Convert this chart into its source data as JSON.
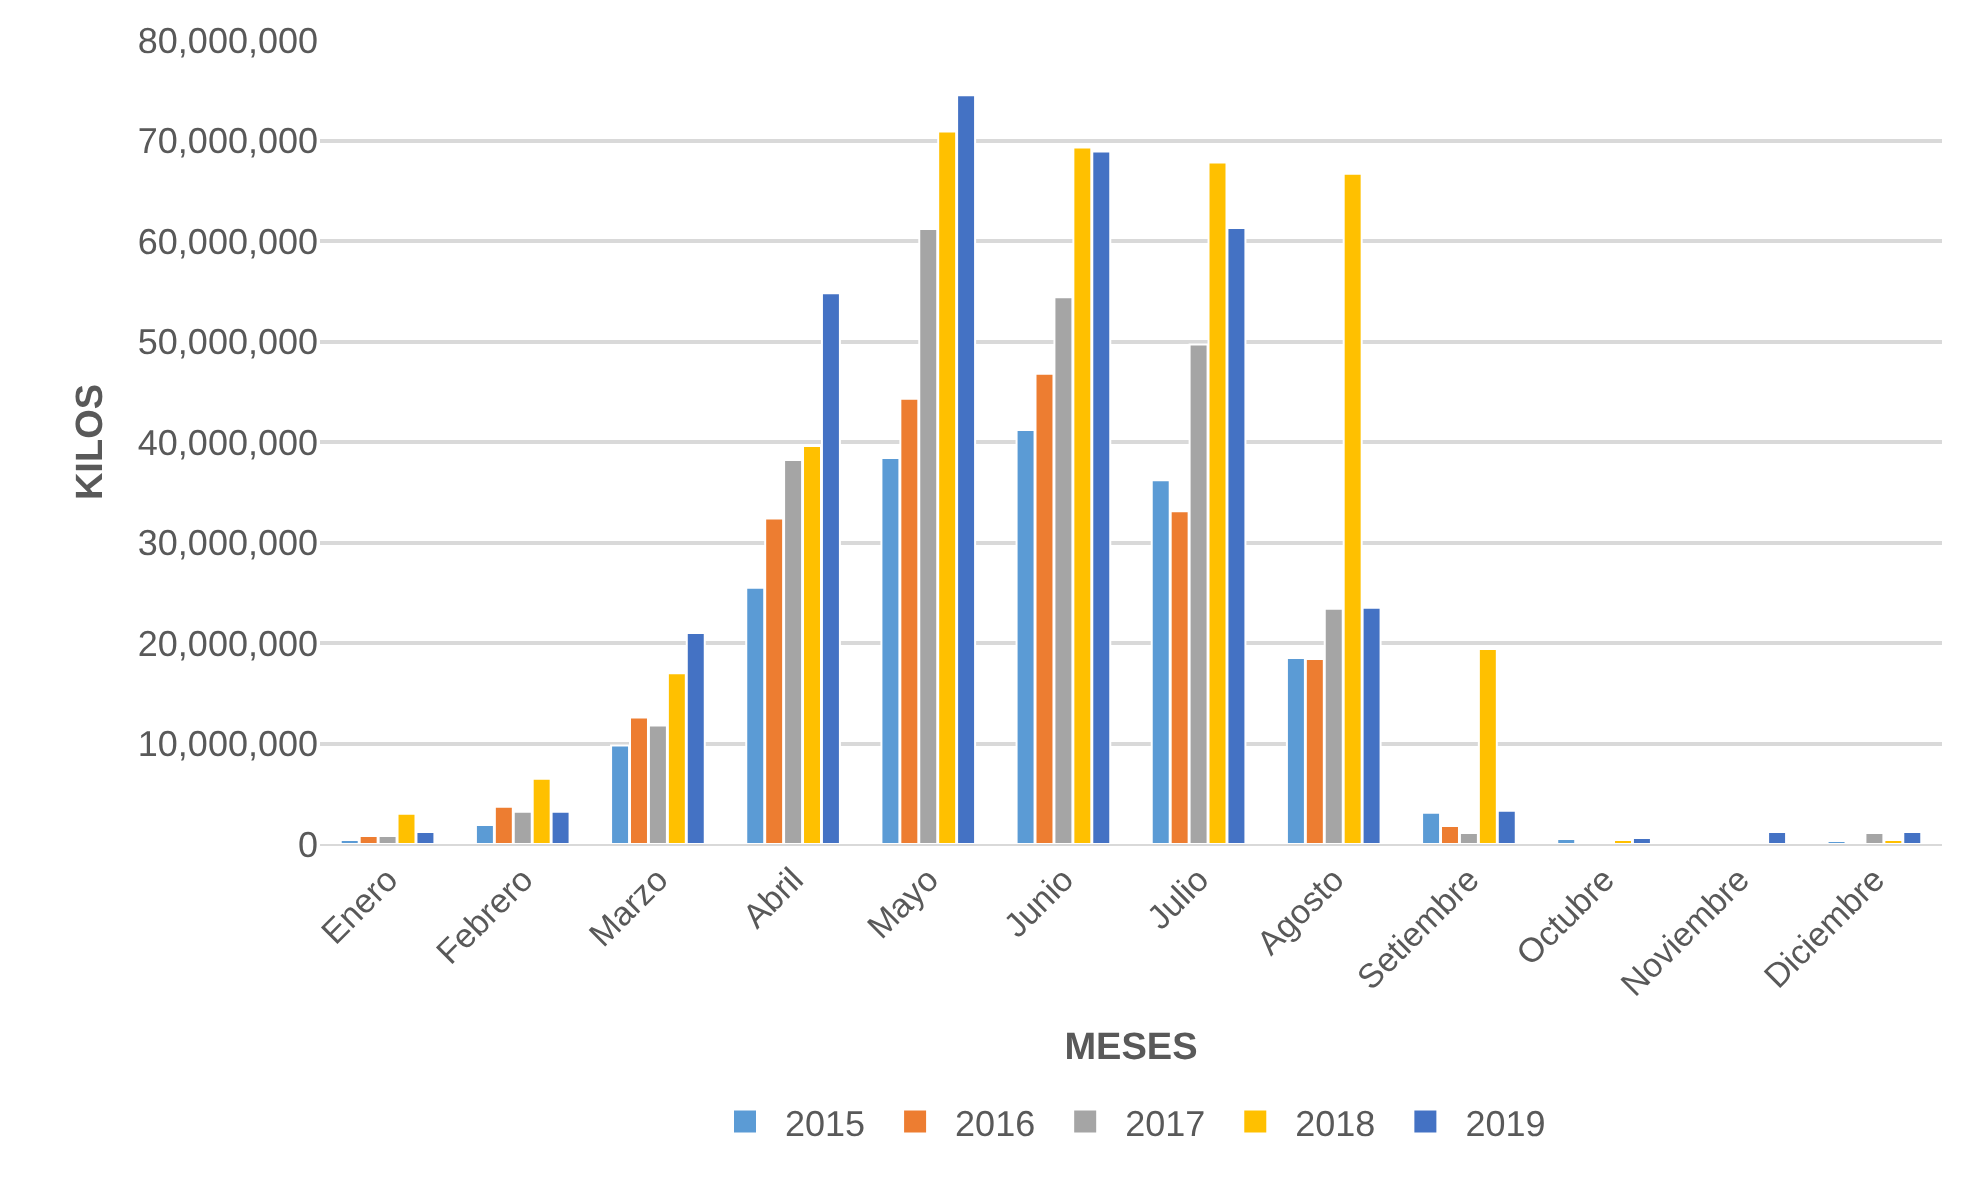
{
  "chart_data": {
    "type": "bar",
    "xlabel": "MESES",
    "ylabel": "KILOS",
    "categories": [
      "Enero",
      "Febrero",
      "Marzo",
      "Abril",
      "Mayo",
      "Junio",
      "Julio",
      "Agosto",
      "Setiembre",
      "Octubre",
      "Noviembre",
      "Diciembre"
    ],
    "series": [
      {
        "name": "2015",
        "color": "#5b9bd5",
        "values": [
          400000,
          1900000,
          9800000,
          25500000,
          38400000,
          41200000,
          36200000,
          18500000,
          3100000,
          500000,
          0,
          300000
        ]
      },
      {
        "name": "2016",
        "color": "#ed7d31",
        "values": [
          800000,
          3700000,
          12600000,
          32400000,
          44300000,
          46800000,
          33100000,
          18400000,
          1800000,
          0,
          0,
          0
        ]
      },
      {
        "name": "2017",
        "color": "#a5a5a5",
        "values": [
          800000,
          3200000,
          11800000,
          38200000,
          61200000,
          54400000,
          49700000,
          23400000,
          1100000,
          0,
          0,
          1100000
        ]
      },
      {
        "name": "2018",
        "color": "#ffc000",
        "values": [
          3000000,
          6500000,
          17000000,
          39600000,
          70900000,
          69300000,
          67800000,
          66700000,
          19400000,
          400000,
          0,
          400000
        ]
      },
      {
        "name": "2019",
        "color": "#4472c4",
        "values": [
          1200000,
          3200000,
          21000000,
          54800000,
          74500000,
          68900000,
          61300000,
          23500000,
          3300000,
          600000,
          1200000,
          1200000
        ]
      }
    ],
    "ylim": [
      0,
      80000000
    ],
    "yticks": [
      {
        "value": 0,
        "label": "0"
      },
      {
        "value": 10000000,
        "label": "10,000,000"
      },
      {
        "value": 20000000,
        "label": "20,000,000"
      },
      {
        "value": 30000000,
        "label": "30,000,000"
      },
      {
        "value": 40000000,
        "label": "40,000,000"
      },
      {
        "value": 50000000,
        "label": "50,000,000"
      },
      {
        "value": 60000000,
        "label": "60,000,000"
      },
      {
        "value": 70000000,
        "label": "70,000,000"
      },
      {
        "value": 80000000,
        "label": "80,000,000"
      }
    ],
    "grid": "y",
    "legend": "bottom"
  }
}
